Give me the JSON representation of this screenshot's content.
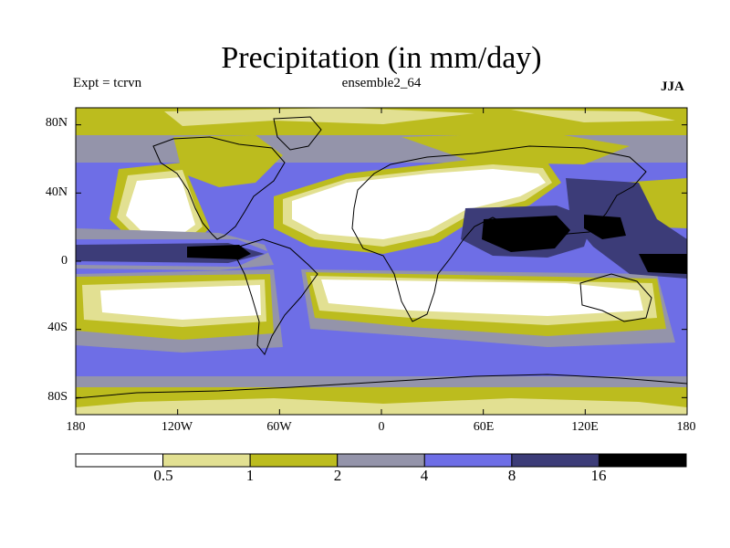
{
  "title": "Precipitation (in mm/day)",
  "experiment_label": "Expt = tcrvn",
  "run_label": "ensemble2_64",
  "season_label": "JJA",
  "colors": {
    "class1": "#ffffff",
    "class2": "#e2e092",
    "class3": "#bcbc1e",
    "class4": "#9494aa",
    "class5": "#6e6ee6",
    "class6": "#3c3c78",
    "class7": "#000000",
    "coast": "#000000"
  },
  "chart_data": {
    "type": "map",
    "title": "Precipitation (in mm/day)",
    "lat_labels": [
      {
        "value": 80,
        "label": "80N"
      },
      {
        "value": 40,
        "label": "40N"
      },
      {
        "value": 0,
        "label": "0"
      },
      {
        "value": -40,
        "label": "40S"
      },
      {
        "value": -80,
        "label": "80S"
      }
    ],
    "lon_labels": [
      {
        "value": -180,
        "label": "180"
      },
      {
        "value": -120,
        "label": "120W"
      },
      {
        "value": -60,
        "label": "60W"
      },
      {
        "value": 0,
        "label": "0"
      },
      {
        "value": 60,
        "label": "60E"
      },
      {
        "value": 120,
        "label": "120E"
      },
      {
        "value": 180,
        "label": "180"
      }
    ],
    "lon_range": [
      -180,
      180
    ],
    "lat_range": [
      -90,
      90
    ],
    "colorbar": {
      "levels": [
        "0.5",
        "1",
        "2",
        "4",
        "8",
        "16"
      ],
      "num_classes": 7
    }
  }
}
